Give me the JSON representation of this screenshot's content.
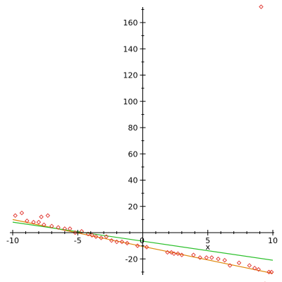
{
  "chart_data": {
    "type": "scatter",
    "title": "",
    "xlabel": "x",
    "ylabel": "",
    "xlim": [
      -10,
      10
    ],
    "ylim": [
      -40,
      170
    ],
    "grid": false,
    "x_ticks": [
      -10,
      -5,
      0,
      5,
      10
    ],
    "y_ticks": [
      -20,
      20,
      40,
      60,
      80,
      100,
      120,
      140,
      160
    ],
    "points": {
      "name": "",
      "color": "#e0302a",
      "x": [
        -9.8,
        -9.3,
        -8.9,
        -8.4,
        -8.0,
        -7.8,
        -7.6,
        -7.3,
        -7.0,
        -6.5,
        -6.0,
        -5.6,
        -5.2,
        -4.7,
        -4.2,
        -3.9,
        -3.6,
        -3.2,
        -2.8,
        -2.4,
        -2.0,
        -1.6,
        -1.2,
        -0.4,
        0.3,
        1.9,
        2.2,
        2.4,
        2.7,
        3.0,
        3.9,
        4.4,
        4.9,
        5.3,
        5.8,
        6.3,
        6.7,
        7.4,
        8.2,
        8.6,
        8.9,
        9.1,
        9.4,
        9.7,
        9.9,
        10.0
      ],
      "y": [
        13,
        15,
        9,
        8,
        8,
        12,
        6,
        13,
        5,
        4,
        3,
        3,
        0,
        1,
        -1,
        -2,
        -3,
        -4,
        -3,
        -6,
        -7,
        -7,
        -8,
        -10,
        -11,
        -15,
        -15,
        -16,
        -16,
        -17,
        -17,
        -19,
        -19,
        -19,
        -20,
        -21,
        -25,
        -23,
        -25,
        -27,
        -28,
        172,
        -39,
        -30,
        -30,
        -40
      ]
    },
    "lines": [
      {
        "name": "",
        "color": "#e08a10",
        "x": [
          -10,
          10
        ],
        "y": [
          10,
          -31
        ]
      },
      {
        "name": "",
        "color": "#2cc02c",
        "x": [
          -10,
          10
        ],
        "y": [
          8,
          -21
        ]
      }
    ]
  }
}
